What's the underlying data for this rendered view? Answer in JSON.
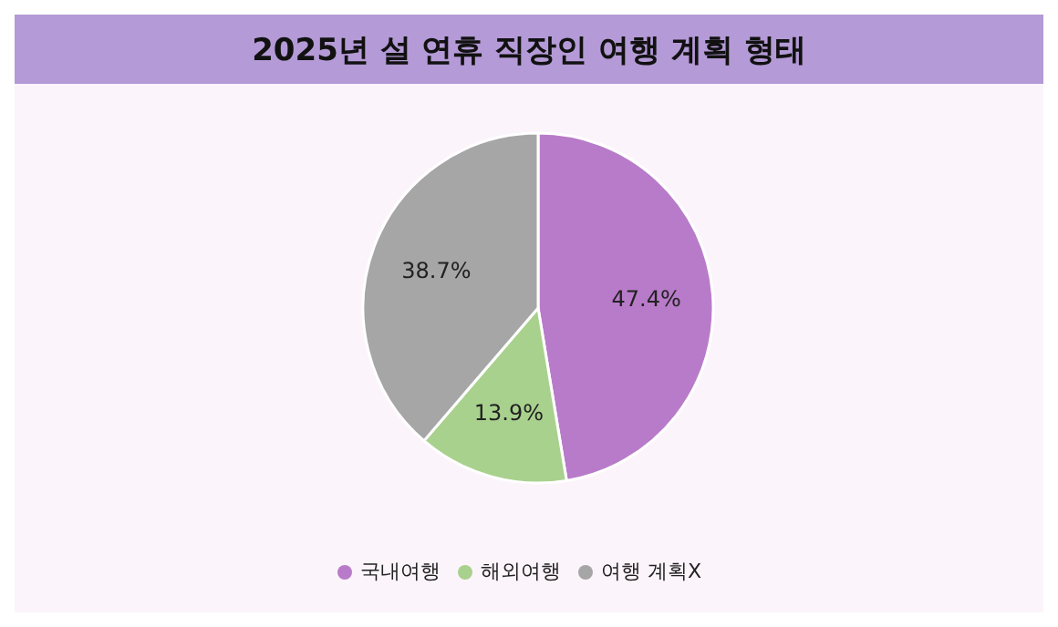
{
  "chart_data": {
    "type": "pie",
    "title": "2025년 설 연휴 직장인 여행 계획 형태",
    "categories": [
      "국내여행",
      "해외여행",
      "여행 계획X"
    ],
    "values": [
      47.4,
      13.9,
      38.7
    ],
    "colors": [
      "#b87bc9",
      "#a9d18e",
      "#a6a6a6"
    ],
    "value_labels": [
      "47.4%",
      "13.9%",
      "38.7%"
    ],
    "legend": "bottom"
  }
}
